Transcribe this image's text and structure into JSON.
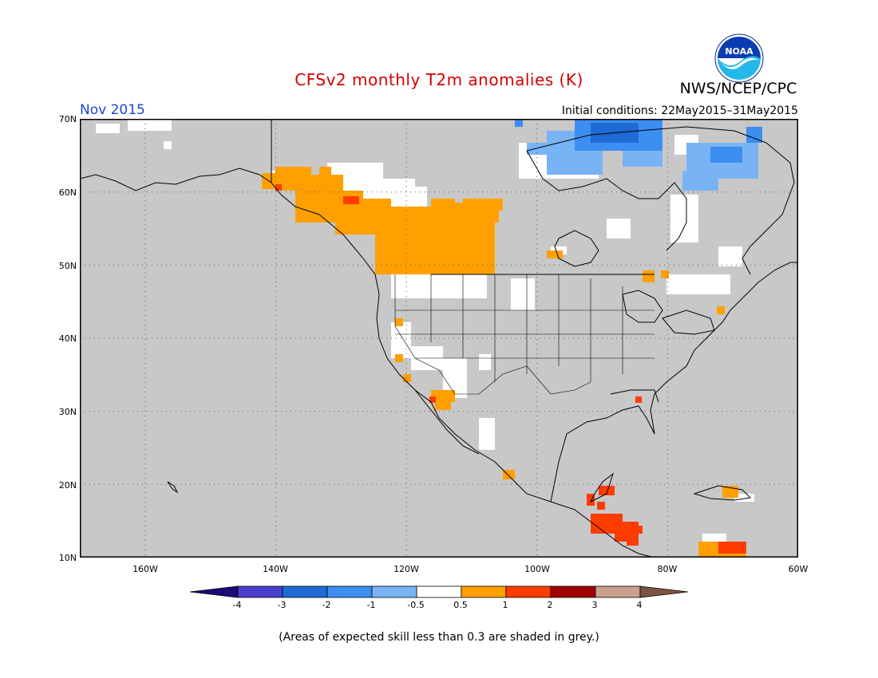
{
  "header": {
    "title": "CFSv2 monthly T2m anomalies (K)",
    "org": "NWS/NCEP/CPC",
    "period": "Nov 2015",
    "initial_conditions": "Initial conditions: 22May2015–31May2015",
    "logo_text": "NOAA"
  },
  "map": {
    "projection": "lat-lon",
    "lat_range": [
      10,
      70
    ],
    "lon_range": [
      -170,
      -60
    ],
    "lat_labels": [
      "70N",
      "60N",
      "50N",
      "40N",
      "30N",
      "20N",
      "10N"
    ],
    "lon_labels": [
      "160W",
      "140W",
      "120W",
      "100W",
      "80W",
      "60W"
    ],
    "grid": "dotted",
    "background_color": "#c8c8c8",
    "land_outline_color": "#000000"
  },
  "colorbar": {
    "labels": [
      "-4",
      "-3",
      "-2",
      "-1",
      "-0.5",
      "0.5",
      "1",
      "2",
      "3",
      "4"
    ],
    "colors": [
      "#1f0a78",
      "#4a3ecc",
      "#1f6ad6",
      "#3c8ef0",
      "#78b4f5",
      "#ffffff",
      "#ffa000",
      "#ff3c00",
      "#a00000",
      "#c8a08c",
      "#7c5442"
    ]
  },
  "footer": {
    "note": "(Areas of expected skill less than 0.3 are shaded in grey.)"
  }
}
